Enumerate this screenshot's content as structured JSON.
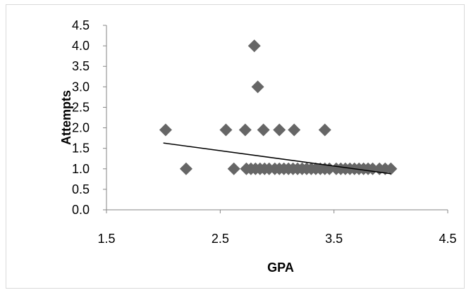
{
  "chart_data": {
    "type": "scatter",
    "xlabel": "GPA",
    "ylabel": "Attempts",
    "xlim": [
      1.5,
      4.5
    ],
    "ylim": [
      0.0,
      4.5
    ],
    "x_ticks": [
      "1.5",
      "2.5",
      "3.5",
      "4.5"
    ],
    "y_ticks": [
      "0.0",
      "0.5",
      "1.0",
      "1.5",
      "2.0",
      "2.5",
      "3.0",
      "3.5",
      "4.0",
      "4.5"
    ],
    "grid": false,
    "legend": "none",
    "marker_color": "#666666",
    "trendline_color": "#000000",
    "series": [
      {
        "points": [
          [
            2.02,
            1.95
          ],
          [
            2.55,
            1.95
          ],
          [
            2.72,
            1.95
          ],
          [
            2.88,
            1.95
          ],
          [
            3.02,
            1.95
          ],
          [
            3.15,
            1.95
          ],
          [
            3.42,
            1.95
          ],
          [
            2.8,
            4.0
          ],
          [
            2.83,
            3.0
          ],
          [
            2.2,
            1.0
          ],
          [
            2.62,
            1.0
          ],
          [
            2.73,
            1.0
          ],
          [
            2.77,
            1.0
          ],
          [
            2.81,
            1.0
          ],
          [
            2.85,
            1.0
          ],
          [
            2.89,
            1.0
          ],
          [
            2.93,
            1.0
          ],
          [
            2.98,
            1.0
          ],
          [
            3.02,
            1.0
          ],
          [
            3.06,
            1.0
          ],
          [
            3.1,
            1.0
          ],
          [
            3.14,
            1.0
          ],
          [
            3.18,
            1.0
          ],
          [
            3.22,
            1.0
          ],
          [
            3.26,
            1.0
          ],
          [
            3.3,
            1.0
          ],
          [
            3.34,
            1.0
          ],
          [
            3.38,
            1.0
          ],
          [
            3.42,
            1.0
          ],
          [
            3.46,
            1.0
          ],
          [
            3.52,
            1.0
          ],
          [
            3.56,
            1.0
          ],
          [
            3.6,
            1.0
          ],
          [
            3.64,
            1.0
          ],
          [
            3.68,
            1.0
          ],
          [
            3.72,
            1.0
          ],
          [
            3.76,
            1.0
          ],
          [
            3.8,
            1.0
          ],
          [
            3.84,
            1.0
          ],
          [
            3.9,
            1.0
          ],
          [
            3.95,
            1.0
          ],
          [
            4.0,
            1.0
          ]
        ]
      }
    ],
    "trendline": {
      "x": [
        2.0,
        4.0
      ],
      "y": [
        1.63,
        0.88
      ]
    }
  }
}
